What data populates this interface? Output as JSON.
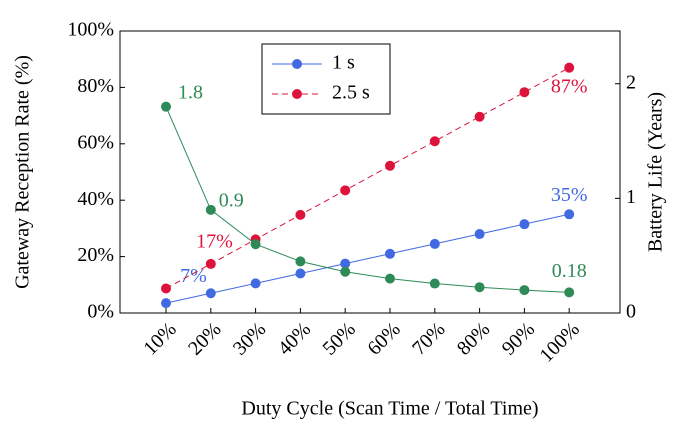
{
  "chart_data": {
    "type": "line",
    "categories": [
      "10%",
      "20%",
      "30%",
      "40%",
      "50%",
      "60%",
      "70%",
      "80%",
      "90%",
      "100%"
    ],
    "series": [
      {
        "name": "1 s",
        "color": "#4169e1",
        "style": "solid",
        "values": [
          3.5,
          7,
          10.5,
          14,
          17.5,
          21,
          24.5,
          28,
          31.5,
          35
        ],
        "value_labels": [
          null,
          "7%",
          null,
          null,
          null,
          null,
          null,
          null,
          null,
          "35%"
        ]
      },
      {
        "name": "2.5 s",
        "color": "#dc143c",
        "style": "dashed",
        "values": [
          8.7,
          17.4,
          26.1,
          34.8,
          43.5,
          52.2,
          60.9,
          69.6,
          78.3,
          87
        ],
        "value_labels": [
          null,
          "17%",
          null,
          null,
          null,
          null,
          null,
          null,
          null,
          "87%"
        ]
      },
      {
        "color": "#2e8b57",
        "style": "solid",
        "axis": "y2",
        "values": [
          1.8,
          0.9,
          0.6,
          0.45,
          0.36,
          0.3,
          0.257,
          0.225,
          0.2,
          0.18
        ],
        "value_labels": [
          "1.8",
          "0.9",
          null,
          null,
          null,
          null,
          null,
          null,
          null,
          "0.18"
        ]
      }
    ],
    "xlabel": "Duty Cycle (Scan Time / Total Time)",
    "ylabel": "Gateway Reception Rate (%)",
    "y2label": "Battery Life (Years)",
    "ylim": [
      0,
      100
    ],
    "yticks": [
      {
        "value": 0,
        "label": "0%"
      },
      {
        "value": 20,
        "label": "20%"
      },
      {
        "value": 40,
        "label": "40%"
      },
      {
        "value": 60,
        "label": "60%"
      },
      {
        "value": 80,
        "label": "80%"
      },
      {
        "value": 100,
        "label": "100%"
      }
    ],
    "y2lim": [
      0,
      2.46
    ],
    "y2ticks": [
      0,
      1,
      2
    ],
    "legend": "upper center"
  }
}
